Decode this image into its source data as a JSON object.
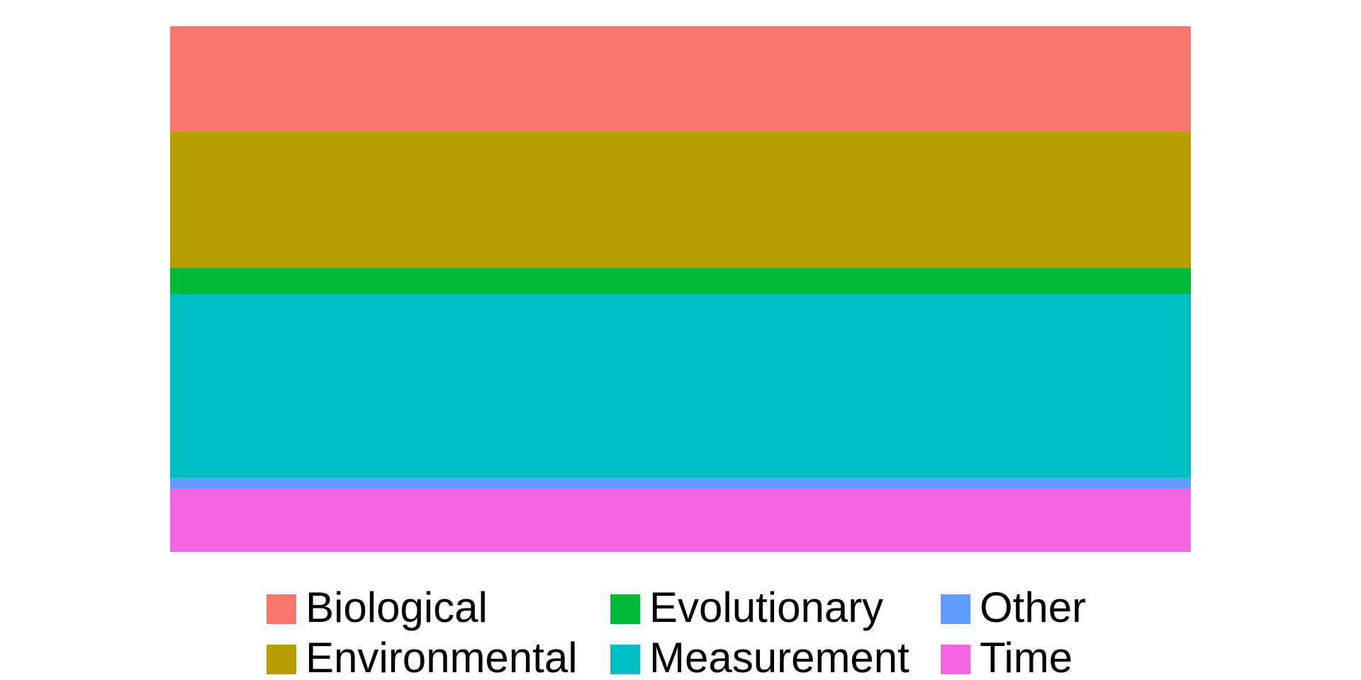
{
  "chart_data": {
    "type": "bar",
    "stacked": true,
    "series": [
      {
        "name": "Biological",
        "color": "#F8766D",
        "values": [
          20
        ]
      },
      {
        "name": "Environmental",
        "color": "#B79F00",
        "values": [
          26
        ]
      },
      {
        "name": "Evolutionary",
        "color": "#00BA38",
        "values": [
          5
        ]
      },
      {
        "name": "Measurement",
        "color": "#00BFC4",
        "values": [
          35
        ]
      },
      {
        "name": "Other",
        "color": "#619CFF",
        "values": [
          2
        ]
      },
      {
        "name": "Time",
        "color": "#F564E3",
        "values": [
          12
        ]
      }
    ]
  }
}
